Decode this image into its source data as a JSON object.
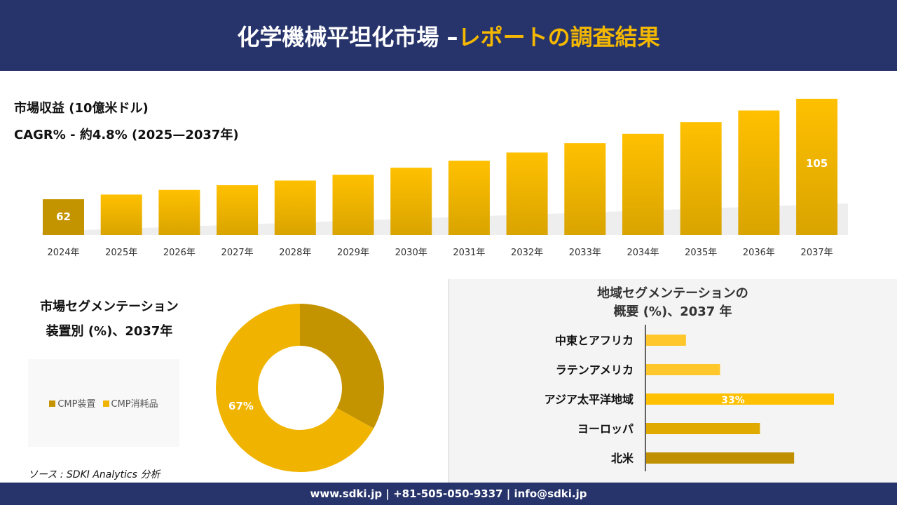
{
  "header": {
    "title_main": "化学機械平坦化市場 –",
    "title_accent": "レポートの調査結果"
  },
  "colors": {
    "navy": "#27346b",
    "gold": "#f5b800",
    "dark_gold": "#c49400",
    "mid_gold": "#e0aa00",
    "light_gold": "#ffc72c"
  },
  "chart_data": [
    {
      "type": "bar",
      "title": "市場収益 (10億米ドル)",
      "subtitle": "CAGR% - 約4.8% (2025—2037年)",
      "categories": [
        "2024年",
        "2025年",
        "2026年",
        "2027年",
        "2028年",
        "2029年",
        "2030年",
        "2031年",
        "2032年",
        "2033年",
        "2034年",
        "2035年",
        "2036年",
        "2037年"
      ],
      "values": [
        62,
        64,
        66,
        68,
        70,
        72.5,
        75.5,
        78.5,
        82,
        86,
        90,
        95,
        100,
        105
      ],
      "data_labels": {
        "0": "62",
        "13": "105"
      }
    },
    {
      "type": "pie",
      "title": "市場セグメンテーション",
      "subtitle": "装置別 (%)、2037年",
      "categories": [
        "CMP装置",
        "CMP消耗品"
      ],
      "values": [
        33,
        67
      ],
      "data_labels": {
        "1": "67%"
      },
      "legend": "left",
      "colors": [
        "#c49400",
        "#f0b400"
      ]
    },
    {
      "type": "bar",
      "orientation": "horizontal",
      "title": "地域セグメンテーションの",
      "subtitle": "概要 (%)、2037 年",
      "categories": [
        "中東とアフリカ",
        "ラテンアメリカ",
        "アジア太平洋地域",
        "ヨーロッパ",
        "北米"
      ],
      "values": [
        7,
        13,
        33,
        20,
        26
      ],
      "data_labels": {
        "2": "33%"
      },
      "colors": [
        "#ffc72c",
        "#ffc72c",
        "#ffc000",
        "#e0aa00",
        "#c09000"
      ]
    }
  ],
  "source": "ソース : SDKI Analytics 分析",
  "footer": "www.sdki.jp | +81-505-050-9337 | info@sdki.jp"
}
